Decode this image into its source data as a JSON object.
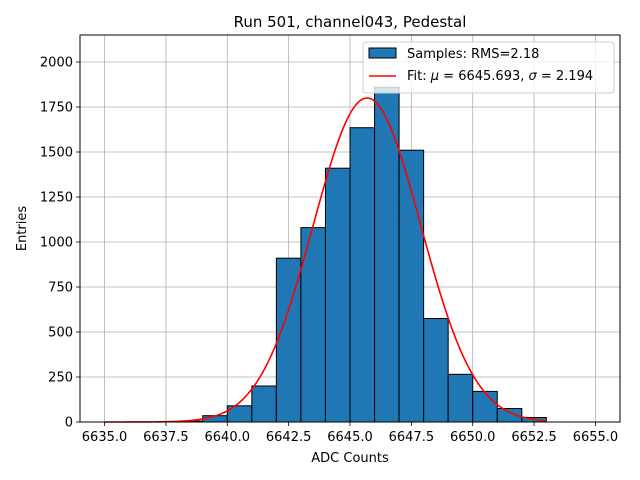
{
  "chart_data": {
    "type": "bar",
    "title": "Run 501, channel043, Pedestal",
    "xlabel": "ADC Counts",
    "ylabel": "Entries",
    "xlim": [
      6634.0,
      6656.0
    ],
    "ylim": [
      0,
      2150
    ],
    "grid": true,
    "x_ticks": [
      6635.0,
      6637.5,
      6640.0,
      6642.5,
      6645.0,
      6647.5,
      6650.0,
      6652.5,
      6655.0
    ],
    "x_tick_labels": [
      "6635.0",
      "6637.5",
      "6640.0",
      "6642.5",
      "6645.0",
      "6647.5",
      "6650.0",
      "6652.5",
      "6655.0"
    ],
    "y_ticks": [
      0,
      250,
      500,
      750,
      1000,
      1250,
      1500,
      1750,
      2000
    ],
    "y_tick_labels": [
      "0",
      "250",
      "500",
      "750",
      "1000",
      "1250",
      "1500",
      "1750",
      "2000"
    ],
    "bar_color": "#1f77b4",
    "fit_color": "#ff0000",
    "series": [
      {
        "name": "Samples: RMS=2.18",
        "kind": "histogram",
        "bin_edges": [
          6638.0,
          6639.0,
          6640.0,
          6641.0,
          6642.0,
          6643.0,
          6644.0,
          6645.0,
          6646.0,
          6647.0,
          6648.0,
          6649.0,
          6650.0,
          6651.0,
          6652.0,
          6653.0
        ],
        "counts": [
          5,
          35,
          90,
          200,
          910,
          1080,
          1410,
          1635,
          1860,
          1510,
          575,
          265,
          170,
          75,
          25
        ]
      },
      {
        "name": "Fit: μ = 6645.693, σ = 2.194",
        "kind": "gaussian",
        "mu": 6645.693,
        "sigma": 2.194,
        "amplitude": 1800,
        "x_range": [
          6635.0,
          6653.0
        ]
      }
    ],
    "legend": {
      "position": "top-right",
      "entries": [
        {
          "label": "Samples: RMS=2.18",
          "style": "patch"
        },
        {
          "label_prefix": "Fit: ",
          "mu_symbol": "μ",
          "mu_text": " = 6645.693, ",
          "sigma_symbol": "σ",
          "sigma_text": " = 2.194",
          "style": "line"
        }
      ]
    }
  }
}
